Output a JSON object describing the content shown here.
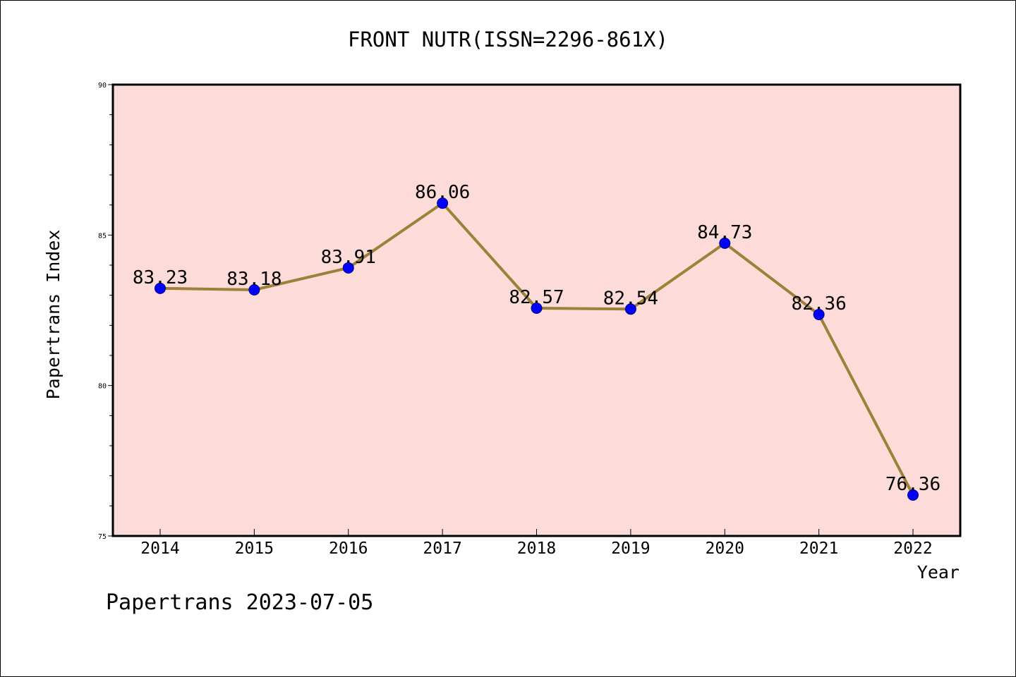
{
  "chart_data": {
    "type": "line",
    "title": "FRONT NUTR(ISSN=2296-861X)",
    "xlabel": "Year",
    "ylabel": "Papertrans Index",
    "x": [
      "2014",
      "2015",
      "2016",
      "2017",
      "2018",
      "2019",
      "2020",
      "2021",
      "2022"
    ],
    "series": [
      {
        "values": [
          83.23,
          83.18,
          83.91,
          86.06,
          82.57,
          82.54,
          84.73,
          82.36,
          76.36
        ],
        "labels": [
          "83.23",
          "83.18",
          "83.91",
          "86.06",
          "82.57",
          "82.54",
          "84.73",
          "82.36",
          "76.36"
        ]
      }
    ],
    "ylim": [
      75,
      90
    ],
    "yticks": [
      "75",
      "80",
      "85",
      "90"
    ],
    "grid": false,
    "colors": {
      "plot_background": "#fddbd8",
      "line": "#9b8139",
      "marker": "#0000ff"
    }
  },
  "footer": "Papertrans 2023-07-05"
}
